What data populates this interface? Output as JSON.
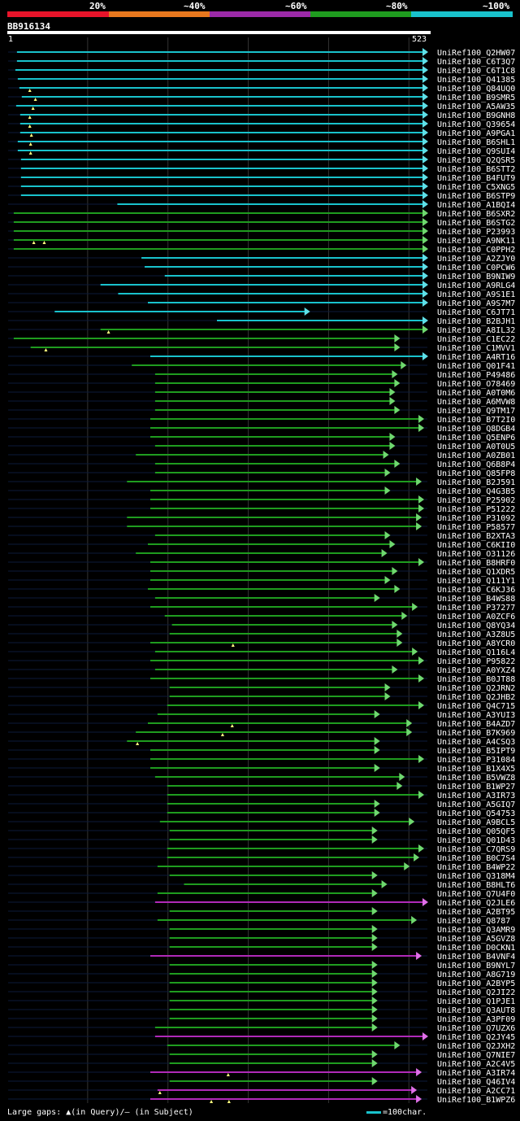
{
  "query": {
    "name": "BB916134",
    "start": "1",
    "end": "523",
    "length": 523
  },
  "legend": {
    "labels": [
      "20%",
      "~40%",
      "~60%",
      "~80%",
      "~100%"
    ],
    "colors": [
      "#e8142a",
      "#e8781e",
      "#9c2aa8",
      "#1f9c1f",
      "#19c2cc"
    ]
  },
  "footer": {
    "gaps": "Large gaps: ▲(in Query)/– (in Subject)",
    "scale": "=100char."
  },
  "chart_data": {
    "type": "alignment",
    "axis": {
      "min": 1,
      "max": 523
    },
    "hits": [
      {
        "name": "UniRef100_Q2HW07",
        "start": 12,
        "end": 523,
        "c": "cyan"
      },
      {
        "name": "UniRef100_C6T3Q7",
        "start": 12,
        "end": 523,
        "c": "cyan"
      },
      {
        "name": "UniRef100_C6T1C8",
        "start": 10,
        "end": 523,
        "c": "cyan"
      },
      {
        "name": "UniRef100_Q41385",
        "start": 13,
        "end": 523,
        "c": "cyan"
      },
      {
        "name": "UniRef100_Q84UQ0",
        "start": 15,
        "end": 523,
        "c": "cyan",
        "qg": [
          28
        ]
      },
      {
        "name": "UniRef100_B9SMR5",
        "start": 18,
        "end": 523,
        "c": "cyan",
        "qg": [
          35
        ]
      },
      {
        "name": "UniRef100_A5AW35",
        "start": 11,
        "end": 523,
        "c": "cyan",
        "qg": [
          32
        ]
      },
      {
        "name": "UniRef100_B9GNH8",
        "start": 16,
        "end": 523,
        "c": "cyan",
        "qg": [
          28
        ]
      },
      {
        "name": "UniRef100_Q39654",
        "start": 16,
        "end": 523,
        "c": "cyan",
        "qg": [
          28
        ]
      },
      {
        "name": "UniRef100_A9PGA1",
        "start": 16,
        "end": 523,
        "c": "cyan",
        "qg": [
          30
        ]
      },
      {
        "name": "UniRef100_B6SHL1",
        "start": 13,
        "end": 523,
        "c": "cyan",
        "qg": [
          29
        ]
      },
      {
        "name": "UniRef100_Q9SUI4",
        "start": 13,
        "end": 523,
        "c": "cyan",
        "qg": [
          29
        ]
      },
      {
        "name": "UniRef100_Q2QSR5",
        "start": 17,
        "end": 523,
        "c": "cyan"
      },
      {
        "name": "UniRef100_B6STT2",
        "start": 17,
        "end": 523,
        "c": "cyan"
      },
      {
        "name": "UniRef100_B4FUT9",
        "start": 17,
        "end": 523,
        "c": "cyan"
      },
      {
        "name": "UniRef100_C5XNG5",
        "start": 17,
        "end": 523,
        "c": "cyan"
      },
      {
        "name": "UniRef100_B6STP9",
        "start": 17,
        "end": 523,
        "c": "cyan"
      },
      {
        "name": "UniRef100_A1BQI4",
        "start": 137,
        "end": 523,
        "c": "cyan"
      },
      {
        "name": "UniRef100_B6SXR2",
        "start": 8,
        "end": 523,
        "c": "green"
      },
      {
        "name": "UniRef100_B6STG2",
        "start": 8,
        "end": 523,
        "c": "green"
      },
      {
        "name": "UniRef100_P23993",
        "start": 8,
        "end": 523,
        "c": "green"
      },
      {
        "name": "UniRef100_A9NK11",
        "start": 8,
        "end": 523,
        "c": "green",
        "qg": [
          33,
          46
        ]
      },
      {
        "name": "UniRef100_C0PPH2",
        "start": 8,
        "end": 523,
        "c": "green"
      },
      {
        "name": "UniRef100_A2ZJY0",
        "start": 167,
        "end": 523,
        "c": "cyan"
      },
      {
        "name": "UniRef100_C0PCW6",
        "start": 171,
        "end": 523,
        "c": "cyan"
      },
      {
        "name": "UniRef100_B9NIW9",
        "start": 196,
        "end": 523,
        "c": "cyan"
      },
      {
        "name": "UniRef100_A9RLG4",
        "start": 116,
        "end": 523,
        "c": "cyan"
      },
      {
        "name": "UniRef100_A9S1E1",
        "start": 138,
        "end": 523,
        "c": "cyan"
      },
      {
        "name": "UniRef100_A9S7M7",
        "start": 175,
        "end": 523,
        "c": "cyan"
      },
      {
        "name": "UniRef100_C6JT71",
        "start": 59,
        "end": 376,
        "c": "cyan"
      },
      {
        "name": "UniRef100_B2BJH1",
        "start": 261,
        "end": 523,
        "c": "cyan"
      },
      {
        "name": "UniRef100_A8IL32",
        "start": 116,
        "end": 523,
        "c": "green",
        "qg": [
          126
        ]
      },
      {
        "name": "UniRef100_C1EC22",
        "start": 8,
        "end": 488,
        "c": "green"
      },
      {
        "name": "UniRef100_C1MVV1",
        "start": 29,
        "end": 488,
        "c": "green",
        "qg": [
          48
        ]
      },
      {
        "name": "UniRef100_A4RT16",
        "start": 178,
        "end": 523,
        "c": "cyan"
      },
      {
        "name": "UniRef100_Q01F41",
        "start": 155,
        "end": 496,
        "c": "green"
      },
      {
        "name": "UniRef100_P49486",
        "start": 184,
        "end": 485,
        "c": "green"
      },
      {
        "name": "UniRef100_O78469",
        "start": 184,
        "end": 488,
        "c": "green"
      },
      {
        "name": "UniRef100_A0T0M6",
        "start": 184,
        "end": 482,
        "c": "green"
      },
      {
        "name": "UniRef100_A6MVW8",
        "start": 184,
        "end": 482,
        "c": "green"
      },
      {
        "name": "UniRef100_Q9TM17",
        "start": 184,
        "end": 488,
        "c": "green"
      },
      {
        "name": "UniRef100_B7T2I0",
        "start": 178,
        "end": 518,
        "c": "green"
      },
      {
        "name": "UniRef100_Q8DGB4",
        "start": 178,
        "end": 518,
        "c": "green"
      },
      {
        "name": "UniRef100_Q5ENP6",
        "start": 178,
        "end": 482,
        "c": "green"
      },
      {
        "name": "UniRef100_A0T0U5",
        "start": 184,
        "end": 482,
        "c": "green"
      },
      {
        "name": "UniRef100_A0ZB01",
        "start": 160,
        "end": 474,
        "c": "green"
      },
      {
        "name": "UniRef100_Q6B8P4",
        "start": 184,
        "end": 488,
        "c": "green"
      },
      {
        "name": "UniRef100_Q85FP8",
        "start": 184,
        "end": 476,
        "c": "green"
      },
      {
        "name": "UniRef100_B2J591",
        "start": 149,
        "end": 515,
        "c": "green"
      },
      {
        "name": "UniRef100_Q4G3B5",
        "start": 178,
        "end": 476,
        "c": "green"
      },
      {
        "name": "UniRef100_P25902",
        "start": 178,
        "end": 518,
        "c": "green"
      },
      {
        "name": "UniRef100_P51222",
        "start": 178,
        "end": 518,
        "c": "green"
      },
      {
        "name": "UniRef100_P31092",
        "start": 149,
        "end": 515,
        "c": "green"
      },
      {
        "name": "UniRef100_P58577",
        "start": 149,
        "end": 515,
        "c": "green"
      },
      {
        "name": "UniRef100_B2XTA3",
        "start": 184,
        "end": 476,
        "c": "green"
      },
      {
        "name": "UniRef100_C6KII0",
        "start": 175,
        "end": 482,
        "c": "green"
      },
      {
        "name": "UniRef100_O31126",
        "start": 160,
        "end": 472,
        "c": "green"
      },
      {
        "name": "UniRef100_B8HRF0",
        "start": 178,
        "end": 518,
        "c": "green"
      },
      {
        "name": "UniRef100_Q1XDR5",
        "start": 178,
        "end": 485,
        "c": "green"
      },
      {
        "name": "UniRef100_Q111Y1",
        "start": 178,
        "end": 476,
        "c": "green"
      },
      {
        "name": "UniRef100_C6KJ36",
        "start": 175,
        "end": 488,
        "c": "green"
      },
      {
        "name": "UniRef100_B4WS88",
        "start": 184,
        "end": 463,
        "c": "green"
      },
      {
        "name": "UniRef100_P37277",
        "start": 178,
        "end": 510,
        "c": "green"
      },
      {
        "name": "UniRef100_A0ZCF6",
        "start": 196,
        "end": 497,
        "c": "green"
      },
      {
        "name": "UniRef100_Q8YQ34",
        "start": 205,
        "end": 485,
        "c": "green"
      },
      {
        "name": "UniRef100_A3Z8U5",
        "start": 202,
        "end": 491,
        "c": "green"
      },
      {
        "name": "UniRef100_A8YCR0",
        "start": 178,
        "end": 491,
        "c": "green",
        "qg": [
          281
        ]
      },
      {
        "name": "UniRef100_Q116L4",
        "start": 184,
        "end": 510,
        "c": "green"
      },
      {
        "name": "UniRef100_P95822",
        "start": 178,
        "end": 518,
        "c": "green"
      },
      {
        "name": "UniRef100_A0YXZ4",
        "start": 184,
        "end": 485,
        "c": "green"
      },
      {
        "name": "UniRef100_B0JT88",
        "start": 178,
        "end": 518,
        "c": "green"
      },
      {
        "name": "UniRef100_Q2JRN2",
        "start": 202,
        "end": 476,
        "c": "green"
      },
      {
        "name": "UniRef100_Q2JHB2",
        "start": 202,
        "end": 476,
        "c": "green"
      },
      {
        "name": "UniRef100_Q4C715",
        "start": 199,
        "end": 518,
        "c": "green"
      },
      {
        "name": "UniRef100_A3YUI3",
        "start": 187,
        "end": 463,
        "c": "green"
      },
      {
        "name": "UniRef100_B4AZD7",
        "start": 175,
        "end": 503,
        "c": "green",
        "qg": [
          280
        ]
      },
      {
        "name": "UniRef100_B7K969",
        "start": 160,
        "end": 503,
        "c": "green",
        "qg": [
          268
        ]
      },
      {
        "name": "UniRef100_A4CSQ3",
        "start": 149,
        "end": 463,
        "c": "green",
        "qg": [
          162
        ]
      },
      {
        "name": "UniRef100_B5IPT9",
        "start": 178,
        "end": 463,
        "c": "green"
      },
      {
        "name": "UniRef100_P31084",
        "start": 178,
        "end": 518,
        "c": "green"
      },
      {
        "name": "UniRef100_B1X4X5",
        "start": 178,
        "end": 463,
        "c": "green"
      },
      {
        "name": "UniRef100_B5VWZ8",
        "start": 184,
        "end": 494,
        "c": "green"
      },
      {
        "name": "UniRef100_B1WP27",
        "start": 199,
        "end": 491,
        "c": "green"
      },
      {
        "name": "UniRef100_A3IR73",
        "start": 199,
        "end": 518,
        "c": "green"
      },
      {
        "name": "UniRef100_A5GIQ7",
        "start": 199,
        "end": 463,
        "c": "green"
      },
      {
        "name": "UniRef100_Q54753",
        "start": 199,
        "end": 463,
        "c": "green"
      },
      {
        "name": "UniRef100_A9BCL5",
        "start": 190,
        "end": 506,
        "c": "green"
      },
      {
        "name": "UniRef100_Q05QF5",
        "start": 202,
        "end": 460,
        "c": "green"
      },
      {
        "name": "UniRef100_Q01D43",
        "start": 202,
        "end": 460,
        "c": "green"
      },
      {
        "name": "UniRef100_C7QRS9",
        "start": 199,
        "end": 518,
        "c": "green"
      },
      {
        "name": "UniRef100_B0C7S4",
        "start": 199,
        "end": 512,
        "c": "green"
      },
      {
        "name": "UniRef100_B4WP22",
        "start": 187,
        "end": 500,
        "c": "green"
      },
      {
        "name": "UniRef100_Q318M4",
        "start": 202,
        "end": 460,
        "c": "green"
      },
      {
        "name": "UniRef100_B8HLT6",
        "start": 220,
        "end": 472,
        "c": "green"
      },
      {
        "name": "UniRef100_Q7U4F0",
        "start": 187,
        "end": 460,
        "c": "green"
      },
      {
        "name": "UniRef100_Q2JLE6",
        "start": 184,
        "end": 523,
        "c": "purple"
      },
      {
        "name": "UniRef100_A2BT95",
        "start": 202,
        "end": 460,
        "c": "green"
      },
      {
        "name": "UniRef100_Q8787",
        "start": 187,
        "end": 509,
        "c": "green"
      },
      {
        "name": "UniRef100_Q3AMR9",
        "start": 202,
        "end": 460,
        "c": "green"
      },
      {
        "name": "UniRef100_A5GVZ8",
        "start": 202,
        "end": 460,
        "c": "green"
      },
      {
        "name": "UniRef100_D0CKN1",
        "start": 202,
        "end": 460,
        "c": "green"
      },
      {
        "name": "UniRef100_B4VNF4",
        "start": 178,
        "end": 515,
        "c": "purple"
      },
      {
        "name": "UniRef100_B9NYL7",
        "start": 202,
        "end": 460,
        "c": "green"
      },
      {
        "name": "UniRef100_A8G719",
        "start": 202,
        "end": 460,
        "c": "green"
      },
      {
        "name": "UniRef100_A2BYP5",
        "start": 202,
        "end": 460,
        "c": "green"
      },
      {
        "name": "UniRef100_Q2JI22",
        "start": 202,
        "end": 460,
        "c": "green"
      },
      {
        "name": "UniRef100_Q1PJE1",
        "start": 202,
        "end": 460,
        "c": "green"
      },
      {
        "name": "UniRef100_Q3AUT8",
        "start": 202,
        "end": 460,
        "c": "green"
      },
      {
        "name": "UniRef100_A3PF09",
        "start": 202,
        "end": 460,
        "c": "green"
      },
      {
        "name": "UniRef100_Q7UZX6",
        "start": 184,
        "end": 460,
        "c": "green"
      },
      {
        "name": "UniRef100_Q2JY45",
        "start": 184,
        "end": 523,
        "c": "purple"
      },
      {
        "name": "UniRef100_Q2JXH2",
        "start": 199,
        "end": 488,
        "c": "green"
      },
      {
        "name": "UniRef100_Q7NIE7",
        "start": 202,
        "end": 460,
        "c": "green"
      },
      {
        "name": "UniRef100_A2C4V5",
        "start": 202,
        "end": 460,
        "c": "green"
      },
      {
        "name": "UniRef100_A3IR74",
        "start": 178,
        "end": 515,
        "c": "purple",
        "qg": [
          275
        ]
      },
      {
        "name": "UniRef100_Q46IV4",
        "start": 202,
        "end": 460,
        "c": "green"
      },
      {
        "name": "UniRef100_A2CC71",
        "start": 187,
        "end": 509,
        "c": "purple",
        "qg": [
          190
        ]
      },
      {
        "name": "UniRef100_B1WPZ6",
        "start": 178,
        "end": 515,
        "c": "purple",
        "qg": [
          254,
          276
        ]
      }
    ]
  }
}
